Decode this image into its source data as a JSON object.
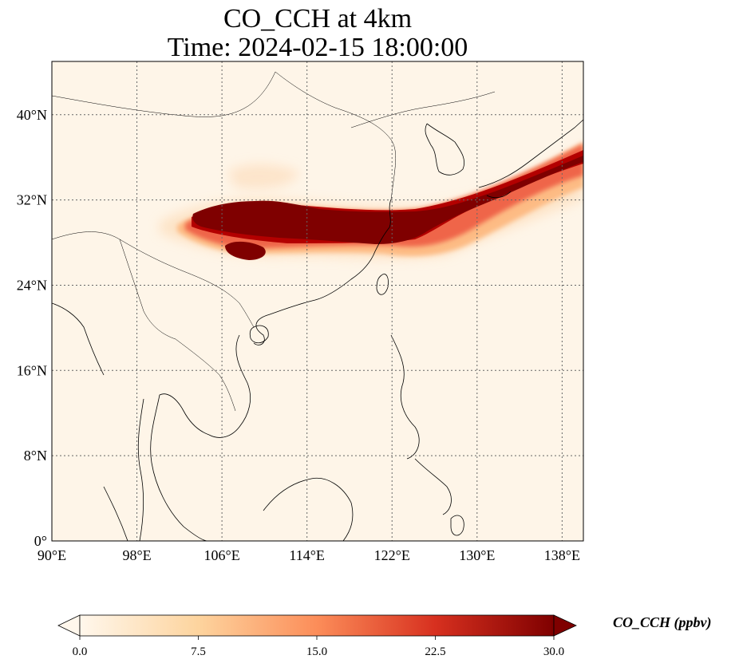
{
  "title": {
    "line1": "CO_CCH at 4km",
    "line2": "Time: 2024-02-15 18:00:00"
  },
  "axes": {
    "lat_ticks": [
      "0°",
      "8°N",
      "16°N",
      "24°N",
      "32°N",
      "40°N"
    ],
    "lon_ticks": [
      "90°E",
      "98°E",
      "106°E",
      "114°E",
      "122°E",
      "130°E",
      "138°E"
    ],
    "lat_values": [
      0,
      8,
      16,
      24,
      32,
      40
    ],
    "lon_values": [
      90,
      98,
      106,
      114,
      122,
      130,
      138
    ],
    "lon_range": [
      90,
      140
    ],
    "lat_range": [
      0,
      45
    ],
    "grid": true
  },
  "colorbar": {
    "title": "CO_CCH (ppbv)",
    "ticks": [
      "0.0",
      "7.5",
      "15.0",
      "22.5",
      "30.0"
    ],
    "range": [
      0,
      30
    ],
    "colormap": [
      "#fff7ec",
      "#fdd49e",
      "#fc8d59",
      "#d7301f",
      "#7f0000"
    ],
    "extend": "both"
  },
  "colors": {
    "background": "#fef5e8",
    "max": "#7f0000",
    "high": "#b30000",
    "mid": "#ef6548",
    "low": "#fdbb84",
    "faint": "#fde2c3",
    "coast": "#000000"
  },
  "plume": {
    "description_layers": [
      "faint",
      "low",
      "mid",
      "high",
      "max"
    ]
  }
}
